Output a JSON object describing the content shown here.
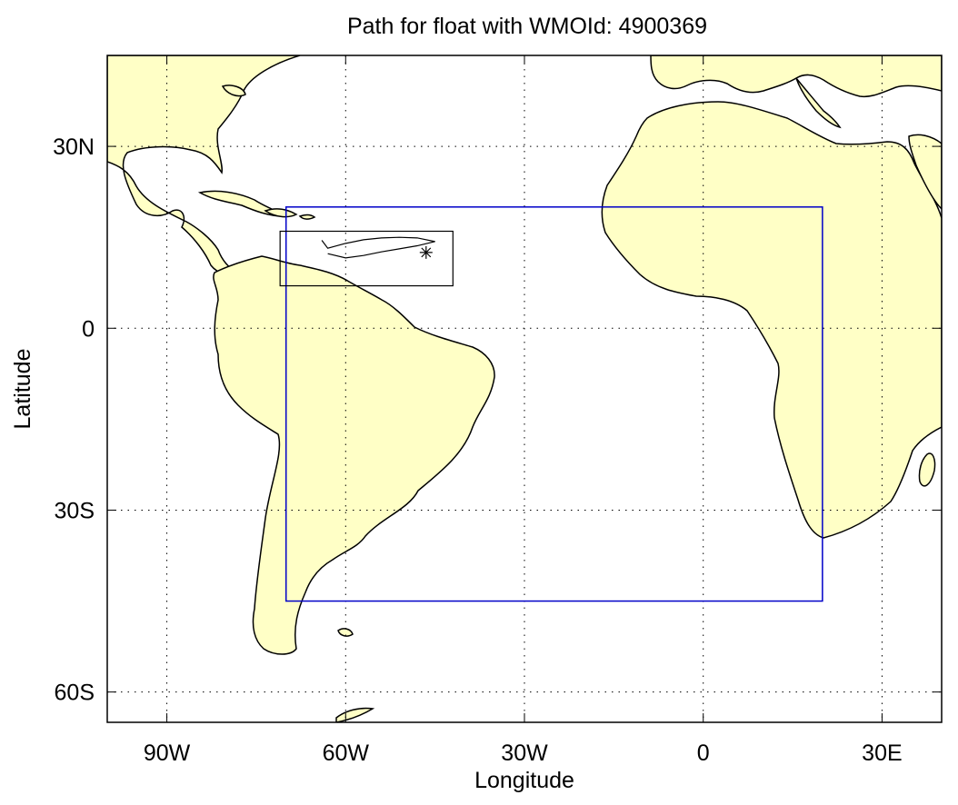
{
  "title": "Path for float with WMOId: 4900369",
  "xlabel": "Longitude",
  "ylabel": "Latitude",
  "colors": {
    "land": "#ffffc6",
    "coast": "#000000",
    "region_box": "#0000c8",
    "path": "#000000"
  },
  "map": {
    "lon_range": [
      -100,
      40
    ],
    "lat_range": [
      -65,
      45
    ],
    "x_ticks": [
      {
        "value": -90,
        "label": "90W"
      },
      {
        "value": -60,
        "label": "60W"
      },
      {
        "value": -30,
        "label": "30W"
      },
      {
        "value": 0,
        "label": "0"
      },
      {
        "value": 30,
        "label": "30E"
      }
    ],
    "y_ticks": [
      {
        "value": 30,
        "label": "30N"
      },
      {
        "value": 0,
        "label": "0"
      },
      {
        "value": -30,
        "label": "30S"
      },
      {
        "value": -60,
        "label": "60S"
      }
    ],
    "grid": true,
    "grid_style": "dotted"
  },
  "chart_data": {
    "type": "map-track",
    "region_box": {
      "lon": [
        -70,
        20
      ],
      "lat": [
        -45,
        20
      ]
    },
    "inset_box": {
      "lon": [
        -71,
        -42
      ],
      "lat": [
        7,
        16
      ]
    },
    "float_path": {
      "lon": [
        -64,
        -63,
        -60,
        -57,
        -54,
        -51,
        -48,
        -45,
        -48,
        -51,
        -54,
        -57,
        -60,
        -63
      ],
      "lat": [
        14.5,
        13.2,
        14.0,
        14.6,
        14.9,
        15.0,
        14.9,
        14.3,
        13.6,
        13.1,
        12.6,
        12.0,
        11.6,
        12.3
      ],
      "deploy": {
        "lon": -46.5,
        "lat": 12.5
      }
    }
  }
}
